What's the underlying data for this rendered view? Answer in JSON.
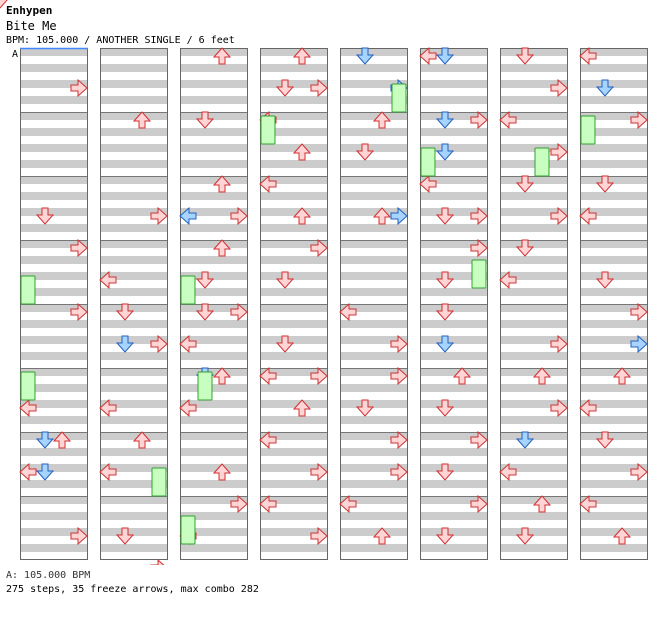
{
  "song": {
    "artist": "Enhypen",
    "title": "Bite Me",
    "info": "BPM: 105.000 / ANOTHER SINGLE / 6 feet"
  },
  "marker": "A",
  "footer": {
    "bpm_line": "A: 105.000 BPM",
    "stats_line": "275 steps, 35 freeze arrows, max combo 282"
  },
  "colors": {
    "stripe": "#cccccc",
    "border": "#666666",
    "red_fill": "#ffd4d4",
    "red_stroke": "#d03030",
    "blue_fill": "#a6d4ff",
    "blue_stroke": "#2060c0",
    "pink_fill": "#ffd0f8",
    "pink_stroke": "#c040c0",
    "freeze_fill": "#c8ffc0",
    "freeze_stroke": "#30a030",
    "marker_line": "#4488ff"
  },
  "chart_data": {
    "type": "step-chart",
    "lanes": [
      "left",
      "down",
      "up",
      "right"
    ],
    "columns": 8,
    "measures_per_column": 8,
    "note_colors": {
      "0": "red",
      "1": "blue",
      "2": "pink"
    },
    "notes": [
      [
        0,
        1,
        3,
        0
      ],
      [
        0,
        1,
        7,
        0
      ],
      [
        0,
        5,
        1,
        0
      ],
      [
        0,
        6,
        3,
        0
      ],
      [
        0,
        8,
        3,
        0
      ],
      [
        0,
        11,
        0,
        0
      ],
      [
        0,
        12,
        2,
        0
      ],
      [
        0,
        12,
        1,
        1
      ],
      [
        0,
        13,
        1,
        1
      ],
      [
        0,
        13,
        0,
        0
      ],
      [
        0,
        15,
        3,
        0
      ],
      [
        1,
        2,
        2,
        0
      ],
      [
        1,
        5,
        3,
        0
      ],
      [
        1,
        7,
        0,
        0
      ],
      [
        1,
        8,
        1,
        0
      ],
      [
        1,
        9,
        1,
        1
      ],
      [
        1,
        9,
        3,
        0
      ],
      [
        1,
        11,
        0,
        0
      ],
      [
        1,
        12,
        2,
        0
      ],
      [
        1,
        13,
        0,
        0
      ],
      [
        1,
        15,
        1,
        0
      ],
      [
        1,
        16,
        3,
        0
      ],
      [
        2,
        0,
        2,
        0
      ],
      [
        2,
        2,
        1,
        0
      ],
      [
        2,
        4,
        2,
        0
      ],
      [
        2,
        5,
        3,
        0
      ],
      [
        2,
        5,
        0,
        1
      ],
      [
        2,
        6,
        2,
        0
      ],
      [
        2,
        7,
        1,
        0
      ],
      [
        2,
        8,
        1,
        0
      ],
      [
        2,
        8,
        3,
        0
      ],
      [
        2,
        9,
        0,
        0
      ],
      [
        2,
        10,
        2,
        0
      ],
      [
        2,
        10,
        1,
        1
      ],
      [
        2,
        11,
        0,
        0
      ],
      [
        2,
        13,
        2,
        0
      ],
      [
        2,
        14,
        3,
        0
      ],
      [
        2,
        15,
        0,
        0
      ],
      [
        3,
        0,
        2,
        0
      ],
      [
        3,
        1,
        1,
        0
      ],
      [
        3,
        1,
        3,
        0
      ],
      [
        3,
        2,
        0,
        0
      ],
      [
        3,
        3,
        2,
        0
      ],
      [
        3,
        4,
        0,
        0
      ],
      [
        3,
        5,
        2,
        0
      ],
      [
        3,
        6,
        3,
        0
      ],
      [
        3,
        7,
        1,
        0
      ],
      [
        3,
        9,
        1,
        0
      ],
      [
        3,
        10,
        0,
        0
      ],
      [
        3,
        10,
        3,
        0
      ],
      [
        3,
        11,
        2,
        0
      ],
      [
        3,
        12,
        0,
        0
      ],
      [
        3,
        13,
        3,
        0
      ],
      [
        3,
        14,
        0,
        0
      ],
      [
        3,
        15,
        3,
        0
      ],
      [
        4,
        0,
        1,
        1
      ],
      [
        4,
        1,
        3,
        1
      ],
      [
        4,
        2,
        2,
        0
      ],
      [
        4,
        3,
        1,
        0
      ],
      [
        4,
        5,
        2,
        0
      ],
      [
        4,
        5,
        3,
        1
      ],
      [
        4,
        8,
        0,
        0
      ],
      [
        4,
        9,
        3,
        0
      ],
      [
        4,
        10,
        3,
        0
      ],
      [
        4,
        11,
        1,
        0
      ],
      [
        4,
        12,
        3,
        0
      ],
      [
        4,
        13,
        3,
        0
      ],
      [
        4,
        14,
        0,
        0
      ],
      [
        4,
        15,
        2,
        0
      ],
      [
        5,
        0,
        1,
        1
      ],
      [
        5,
        0,
        0,
        0
      ],
      [
        5,
        2,
        1,
        1
      ],
      [
        5,
        2,
        3,
        0
      ],
      [
        5,
        3,
        1,
        1
      ],
      [
        5,
        4,
        0,
        0
      ],
      [
        5,
        5,
        3,
        0
      ],
      [
        5,
        5,
        1,
        0
      ],
      [
        5,
        6,
        3,
        0
      ],
      [
        5,
        7,
        1,
        0
      ],
      [
        5,
        8,
        1,
        0
      ],
      [
        5,
        9,
        1,
        1
      ],
      [
        5,
        10,
        2,
        0
      ],
      [
        5,
        11,
        1,
        0
      ],
      [
        5,
        12,
        3,
        0
      ],
      [
        5,
        13,
        1,
        0
      ],
      [
        5,
        14,
        3,
        0
      ],
      [
        5,
        15,
        1,
        0
      ],
      [
        6,
        0,
        1,
        0
      ],
      [
        6,
        1,
        3,
        0
      ],
      [
        6,
        2,
        0,
        0
      ],
      [
        6,
        3,
        3,
        0
      ],
      [
        6,
        4,
        1,
        0
      ],
      [
        6,
        5,
        3,
        0
      ],
      [
        6,
        6,
        1,
        0
      ],
      [
        6,
        7,
        0,
        0
      ],
      [
        6,
        9,
        3,
        0
      ],
      [
        6,
        10,
        2,
        0
      ],
      [
        6,
        11,
        3,
        0
      ],
      [
        6,
        12,
        1,
        1
      ],
      [
        6,
        13,
        0,
        0
      ],
      [
        6,
        14,
        2,
        0
      ],
      [
        6,
        15,
        1,
        0
      ],
      [
        7,
        0,
        0,
        0
      ],
      [
        7,
        1,
        1,
        1
      ],
      [
        7,
        2,
        3,
        0
      ],
      [
        7,
        4,
        1,
        0
      ],
      [
        7,
        5,
        0,
        0
      ],
      [
        7,
        7,
        1,
        0
      ],
      [
        7,
        8,
        3,
        0
      ],
      [
        7,
        9,
        3,
        1
      ],
      [
        7,
        10,
        2,
        0
      ],
      [
        7,
        11,
        0,
        0
      ],
      [
        7,
        12,
        1,
        0
      ],
      [
        7,
        13,
        3,
        0
      ],
      [
        7,
        14,
        0,
        0
      ],
      [
        7,
        15,
        2,
        0
      ]
    ],
    "freezes": [
      [
        0,
        14,
        0
      ],
      [
        0,
        20,
        0
      ],
      [
        1,
        26,
        3
      ],
      [
        2,
        14,
        0
      ],
      [
        2,
        20,
        1
      ],
      [
        2,
        29,
        0
      ],
      [
        3,
        4,
        0
      ],
      [
        4,
        2,
        3
      ],
      [
        5,
        6,
        0
      ],
      [
        5,
        13,
        3
      ],
      [
        6,
        6,
        2
      ],
      [
        7,
        4,
        0
      ]
    ]
  }
}
